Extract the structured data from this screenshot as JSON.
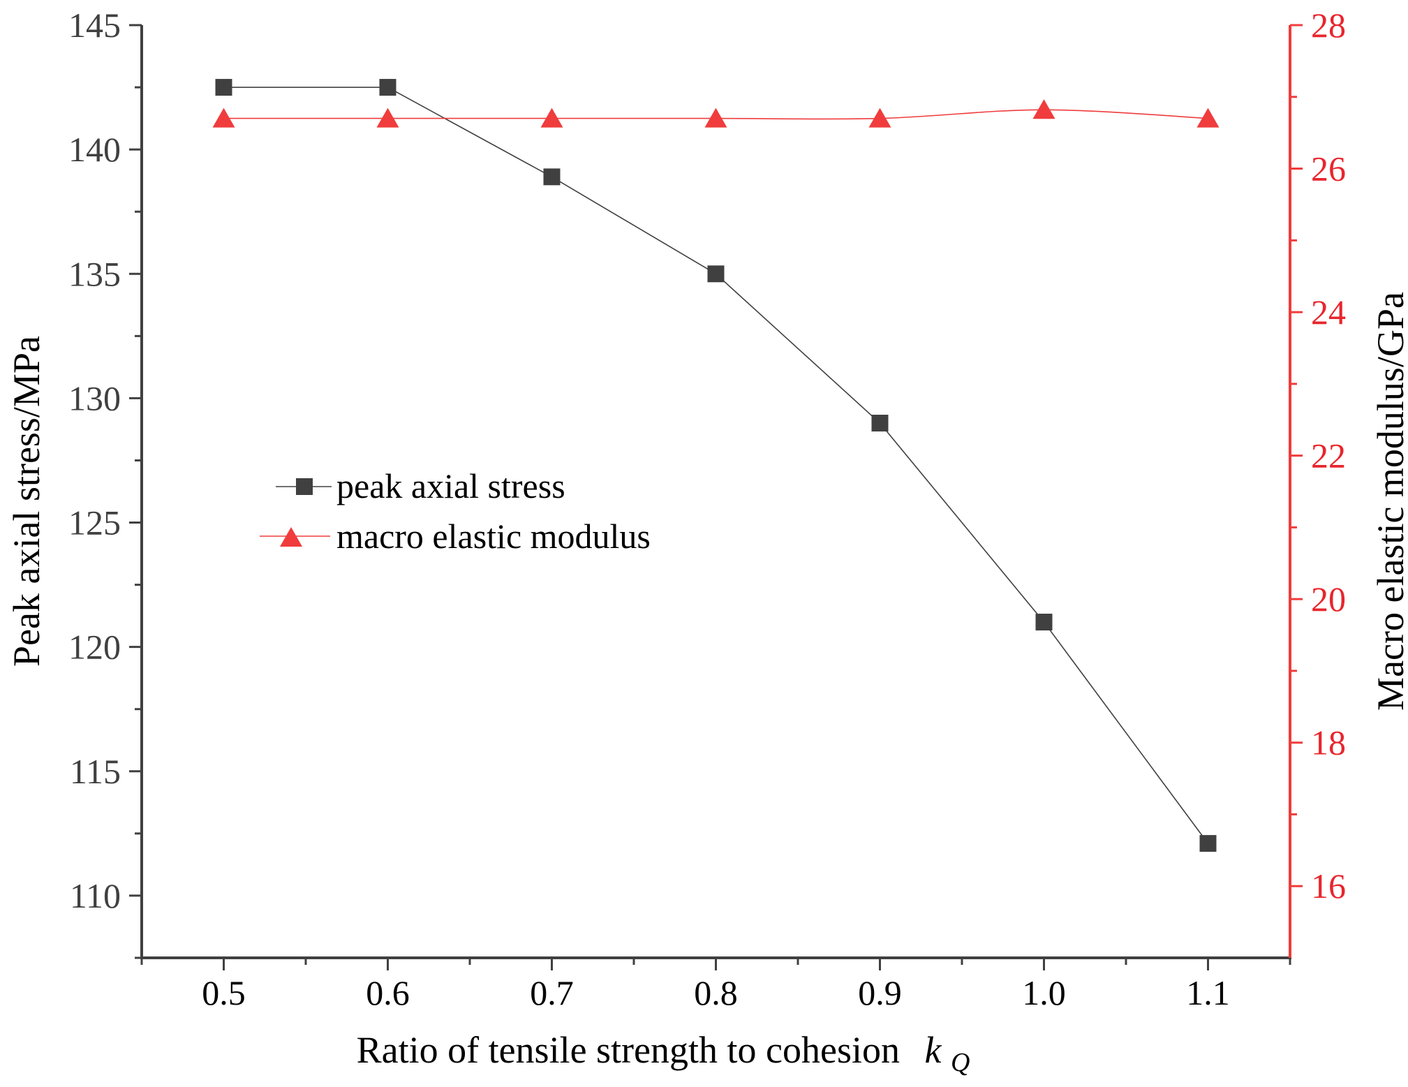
{
  "chart_data": {
    "type": "line",
    "x": [
      0.5,
      0.6,
      0.7,
      0.8,
      0.9,
      1.0,
      1.1
    ],
    "x_tick_labels": [
      "0.5",
      "0.6",
      "0.7",
      "0.8",
      "0.9",
      "1.0",
      "1.1"
    ],
    "xlim": [
      0.45,
      1.15
    ],
    "xlabel": "Ratio of tensile strength to cohesion",
    "xlabel_symbol": "k",
    "xlabel_subscript": "Q",
    "ylabel": "Peak axial stress/MPa",
    "ylim": [
      107.5,
      145
    ],
    "y_ticks": [
      110,
      115,
      120,
      125,
      130,
      135,
      140,
      145
    ],
    "y_tick_labels": [
      "110",
      "115",
      "120",
      "125",
      "130",
      "135",
      "140",
      "145"
    ],
    "y2label": "Macro elastic modulus/GPa",
    "y2lim": [
      15,
      28
    ],
    "y2_ticks": [
      16,
      18,
      20,
      22,
      24,
      26,
      28
    ],
    "y2_tick_labels": [
      "16",
      "18",
      "20",
      "22",
      "24",
      "26",
      "28"
    ],
    "legend_position": "center-left",
    "series": [
      {
        "name": "peak axial stress",
        "axis": "left",
        "marker": "square",
        "color": "#404040",
        "values": [
          142.5,
          142.5,
          138.9,
          135.0,
          129.0,
          121.0,
          112.1
        ]
      },
      {
        "name": "macro elastic modulus",
        "axis": "right",
        "marker": "triangle",
        "color": "#f03c3c",
        "values": [
          26.7,
          26.7,
          26.7,
          26.7,
          26.7,
          26.82,
          26.7
        ]
      }
    ],
    "colors": {
      "left_axis": "#404040",
      "right_axis": "#f03c3c",
      "right_axis_text": "#e8262d"
    }
  }
}
